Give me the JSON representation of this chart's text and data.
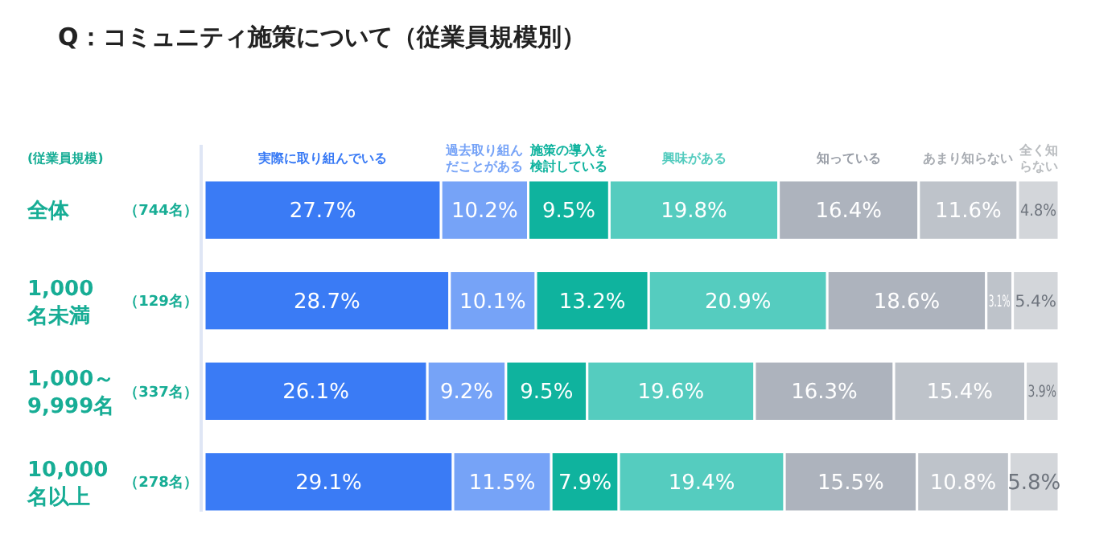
{
  "chart_data": {
    "type": "bar",
    "orientation": "horizontal",
    "stacked": true,
    "title": "Q：コミュニティ施策について（従業員規模別）",
    "ylabel": "(従業員規模)",
    "categories": [
      "全体",
      "1,000\n名未満",
      "1,000～\n9,999名",
      "10,000\n名以上"
    ],
    "annotations": [
      "（744名）",
      "（129名）",
      "（337名）",
      "（278名）"
    ],
    "series": [
      {
        "name": "実際に取り組んでいる",
        "color": "#3a7bf5",
        "values": [
          27.7,
          28.7,
          26.1,
          29.1
        ],
        "value_labels": [
          "27.7%",
          "28.7%",
          "26.1%",
          "29.1%"
        ]
      },
      {
        "name": "過去取り組んだことがある",
        "color": "#76a3f7",
        "values": [
          10.2,
          10.1,
          9.2,
          11.5
        ],
        "value_labels": [
          "10.2%",
          "10.1%",
          "9.2%",
          "11.5%"
        ]
      },
      {
        "name": "施策の導入を検討している",
        "color": "#0fb39e",
        "values": [
          9.5,
          13.2,
          9.5,
          7.9
        ],
        "value_labels": [
          "9.5%",
          "13.2%",
          "9.5%",
          "7.9%"
        ]
      },
      {
        "name": "興味がある",
        "color": "#55ccbf",
        "values": [
          19.8,
          20.9,
          19.6,
          19.4
        ],
        "value_labels": [
          "19.8%",
          "20.9%",
          "19.6%",
          "19.4%"
        ]
      },
      {
        "name": "知っている",
        "color": "#adb3bd",
        "values": [
          16.4,
          18.6,
          16.3,
          15.5
        ],
        "value_labels": [
          "16.4%",
          "18.6%",
          "16.3%",
          "15.5%"
        ]
      },
      {
        "name": "あまり知らない",
        "color": "#bec3ca",
        "values": [
          11.6,
          3.1,
          15.4,
          10.8
        ],
        "value_labels": [
          "11.6%",
          "3.1%",
          "15.4%",
          "10.8%"
        ]
      },
      {
        "name": "全く知らない",
        "color": "#d3d6da",
        "values": [
          4.8,
          5.4,
          3.9,
          5.8
        ],
        "value_labels": [
          "4.8%",
          "5.4%",
          "3.9%",
          "5.8%"
        ]
      }
    ],
    "tick_labels": "y",
    "legend": "top"
  }
}
